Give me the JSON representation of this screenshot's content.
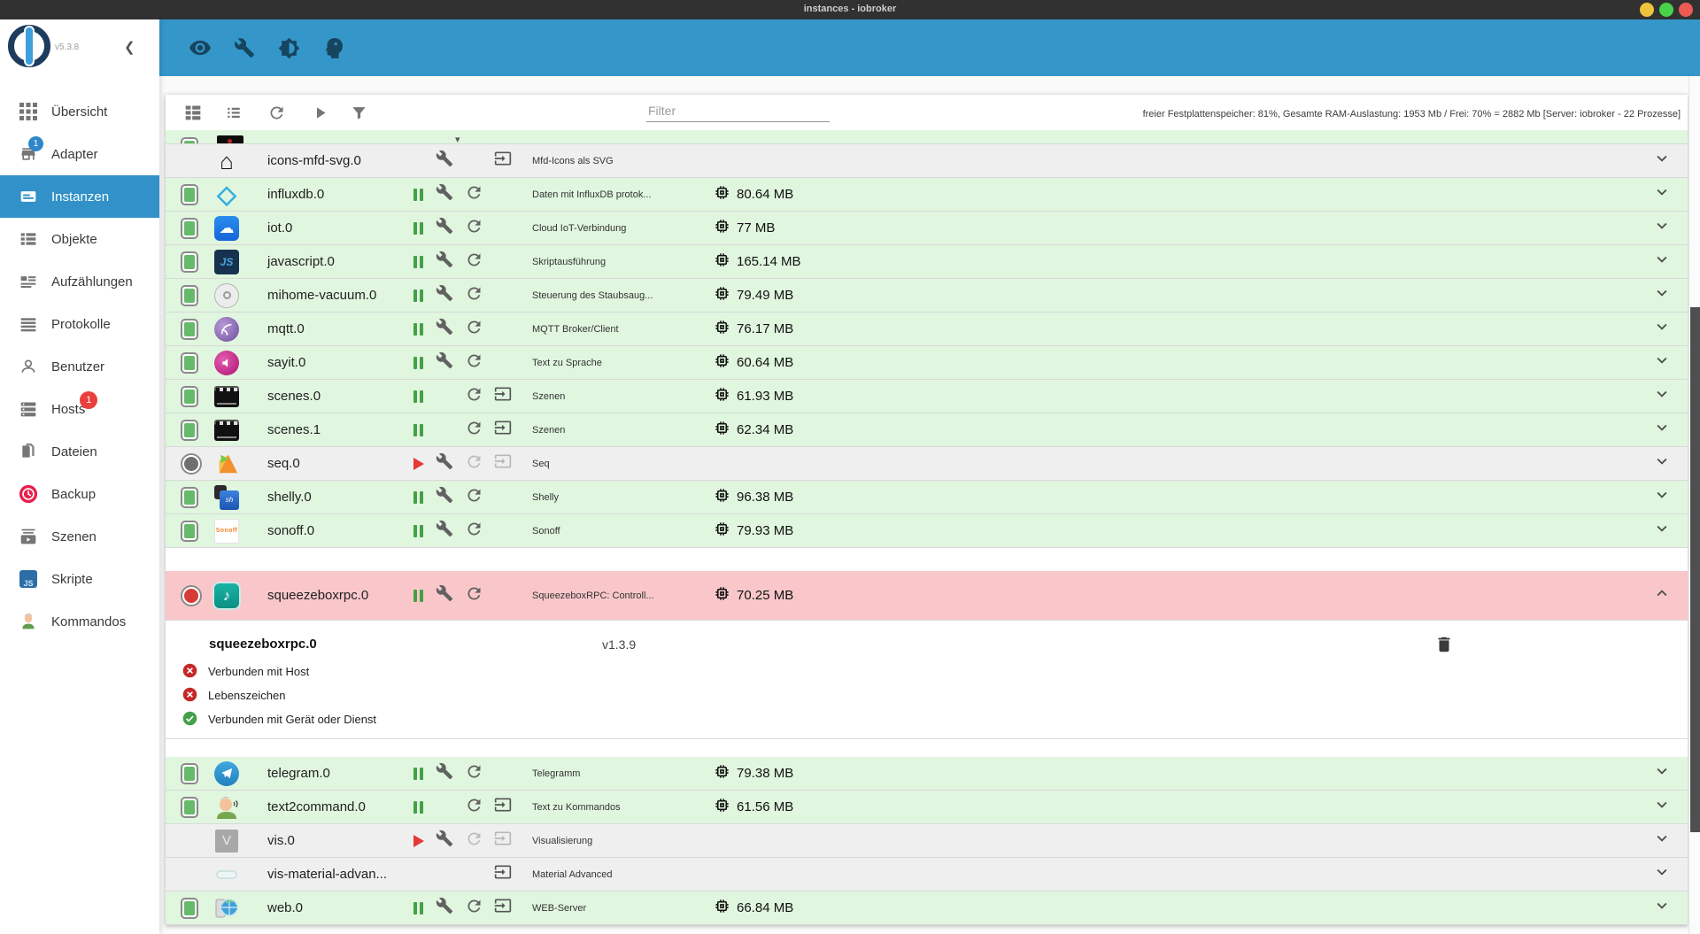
{
  "window": {
    "title": "instances - iobroker",
    "traffic_lights": [
      {
        "name": "minimize",
        "color": "#eec33e"
      },
      {
        "name": "maximize",
        "color": "#49d34a"
      },
      {
        "name": "close",
        "color": "#ec5a54"
      }
    ]
  },
  "colors": {
    "appbar": "#3596c9",
    "sidebar_active": "#3291c8",
    "row_running": "#e0f6df",
    "row_disabled": "#efefef",
    "row_error": "#f9c7ca",
    "status_ok": "#66bb6a",
    "status_error": "#d63a34",
    "pause": "#43a047",
    "play": "#e53935",
    "badge_blue": "#2d87c8",
    "badge_red": "#e9403d"
  },
  "appbar": {
    "icons": [
      {
        "name": "visibility-icon"
      },
      {
        "name": "wrench-icon"
      },
      {
        "name": "brightness-icon"
      },
      {
        "name": "expert-mode-icon"
      }
    ]
  },
  "sidebar": {
    "version": "v5.3.8",
    "items": [
      {
        "label": "Übersicht",
        "icon": "grid"
      },
      {
        "label": "Adapter",
        "icon": "store",
        "badge": "1",
        "badge_color": "#2d87c8",
        "badge_pos": "on-icon"
      },
      {
        "label": "Instanzen",
        "icon": "instances",
        "active": true
      },
      {
        "label": "Objekte",
        "icon": "objects"
      },
      {
        "label": "Aufzählungen",
        "icon": "enums"
      },
      {
        "label": "Protokolle",
        "icon": "logs"
      },
      {
        "label": "Benutzer",
        "icon": "user"
      },
      {
        "label": "Hosts",
        "icon": "hosts",
        "badge": "1",
        "badge_color": "#e9403d",
        "badge_pos": "on-label"
      },
      {
        "label": "Dateien",
        "icon": "files"
      },
      {
        "label": "Backup",
        "icon": "backup"
      },
      {
        "label": "Szenen",
        "icon": "scenes"
      },
      {
        "label": "Skripte",
        "icon": "js"
      },
      {
        "label": "Kommandos",
        "icon": "person"
      }
    ]
  },
  "content_toolbar": {
    "filter_placeholder": "Filter",
    "status_text": "freier Festplattenspeicher: 81%, Gesamte RAM-Auslastung: 1953 Mb / Frei: 70% = 2882 Mb [Server: iobroker - 22 Prozesse]"
  },
  "instances": {
    "rows": [
      {
        "type": "partial"
      },
      {
        "id": "icons-mfd-svg.0",
        "bg": "grey",
        "status": "none",
        "icon": "mfd",
        "glyph": "⌂",
        "description": "Mfd-Icons als SVG",
        "memory": "",
        "toggle": "none",
        "wrench": true,
        "refresh": "none",
        "schedule": "on",
        "chevron": "down"
      },
      {
        "id": "influxdb.0",
        "bg": "green",
        "status": "ok",
        "icon": "influx",
        "glyph": "◇",
        "description": "Daten mit InfluxDB protok...",
        "memory": "80.64 MB",
        "toggle": "pause",
        "wrench": true,
        "refresh": "on",
        "schedule": "none",
        "chevron": "down"
      },
      {
        "id": "iot.0",
        "bg": "green",
        "status": "ok",
        "icon": "iot",
        "glyph": "☁",
        "description": "Cloud IoT-Verbindung",
        "memory": "77 MB",
        "toggle": "pause",
        "wrench": true,
        "refresh": "on",
        "schedule": "none",
        "chevron": "down"
      },
      {
        "id": "javascript.0",
        "bg": "green",
        "status": "ok",
        "icon": "jslogo",
        "glyph": "JS",
        "description": "Skriptausführung",
        "memory": "165.14 MB",
        "toggle": "pause",
        "wrench": true,
        "refresh": "on",
        "schedule": "none",
        "chevron": "down"
      },
      {
        "id": "mihome-vacuum.0",
        "bg": "green",
        "status": "ok",
        "icon": "vacuum",
        "glyph": "",
        "description": "Steuerung des Staubsaug...",
        "memory": "79.49 MB",
        "toggle": "pause",
        "wrench": true,
        "refresh": "on",
        "schedule": "none",
        "chevron": "down"
      },
      {
        "id": "mqtt.0",
        "bg": "green",
        "status": "ok",
        "icon": "mqtt",
        "glyph": "",
        "description": "MQTT Broker/Client",
        "memory": "76.17 MB",
        "toggle": "pause",
        "wrench": true,
        "refresh": "on",
        "schedule": "none",
        "chevron": "down"
      },
      {
        "id": "sayit.0",
        "bg": "green",
        "status": "ok",
        "icon": "sayit",
        "glyph": "",
        "description": "Text zu Sprache",
        "memory": "60.64 MB",
        "toggle": "pause",
        "wrench": true,
        "refresh": "on",
        "schedule": "none",
        "chevron": "down"
      },
      {
        "id": "scenes.0",
        "bg": "green",
        "status": "ok",
        "icon": "clapper",
        "glyph": "",
        "description": "Szenen",
        "memory": "61.93 MB",
        "toggle": "pause",
        "wrench": false,
        "refresh": "on",
        "schedule": "on",
        "chevron": "down"
      },
      {
        "id": "scenes.1",
        "bg": "green",
        "status": "ok",
        "icon": "clapper",
        "glyph": "",
        "description": "Szenen",
        "memory": "62.34 MB",
        "toggle": "pause",
        "wrench": false,
        "refresh": "on",
        "schedule": "on",
        "chevron": "down"
      },
      {
        "id": "seq.0",
        "bg": "grey",
        "status": "off",
        "icon": "seq",
        "glyph": "",
        "description": "Seq",
        "memory": "",
        "toggle": "play",
        "wrench": true,
        "refresh": "off",
        "schedule": "off",
        "chevron": "down"
      },
      {
        "id": "shelly.0",
        "bg": "green",
        "status": "ok",
        "icon": "shelly",
        "glyph": "",
        "description": "Shelly",
        "memory": "96.38 MB",
        "toggle": "pause",
        "wrench": true,
        "refresh": "on",
        "schedule": "none",
        "chevron": "down"
      },
      {
        "id": "sonoff.0",
        "bg": "green",
        "status": "ok",
        "icon": "sonoff",
        "glyph": "Sonoff",
        "description": "Sonoff",
        "memory": "79.93 MB",
        "toggle": "pause",
        "wrench": true,
        "refresh": "on",
        "schedule": "none",
        "chevron": "down"
      },
      {
        "id": "squeezeboxrpc.0",
        "bg": "pink",
        "status": "error",
        "icon": "squeeze",
        "glyph": "♪",
        "description": "SqueezeboxRPC: Controll...",
        "memory": "70.25 MB",
        "toggle": "pause",
        "wrench": true,
        "refresh": "on",
        "schedule": "none",
        "chevron": "up",
        "expanded": true
      },
      {
        "id": "telegram.0",
        "bg": "green",
        "status": "ok",
        "icon": "telegram",
        "glyph": "",
        "description": "Telegramm",
        "memory": "79.38 MB",
        "toggle": "pause",
        "wrench": true,
        "refresh": "on",
        "schedule": "none",
        "chevron": "down"
      },
      {
        "id": "text2command.0",
        "bg": "green",
        "status": "ok",
        "icon": "t2c",
        "glyph": "",
        "description": "Text zu Kommandos",
        "memory": "61.56 MB",
        "toggle": "pause",
        "wrench": false,
        "refresh": "on",
        "schedule": "on",
        "chevron": "down"
      },
      {
        "id": "vis.0",
        "bg": "grey",
        "status": "none",
        "icon": "vis",
        "glyph": "V",
        "description": "Visualisierung",
        "memory": "",
        "toggle": "play",
        "wrench": true,
        "refresh": "off",
        "schedule": "off",
        "chevron": "down"
      },
      {
        "id": "vis-material-advan...",
        "bg": "grey",
        "status": "none",
        "icon": "vmat",
        "glyph": "",
        "description": "Material Advanced",
        "memory": "",
        "toggle": "none",
        "wrench": false,
        "refresh": "none",
        "schedule": "on",
        "chevron": "down"
      },
      {
        "id": "web.0",
        "bg": "green",
        "status": "ok",
        "icon": "web",
        "glyph": "",
        "description": "WEB-Server",
        "memory": "66.84 MB",
        "toggle": "pause",
        "wrench": true,
        "refresh": "on",
        "schedule": "on",
        "chevron": "down"
      }
    ],
    "expanded_detail": {
      "title": "squeezeboxrpc.0",
      "version": "v1.3.9",
      "statuses": [
        {
          "state": "error",
          "label": "Verbunden mit Host"
        },
        {
          "state": "error",
          "label": "Lebenszeichen"
        },
        {
          "state": "ok",
          "label": "Verbunden mit Gerät oder Dienst"
        }
      ]
    }
  }
}
